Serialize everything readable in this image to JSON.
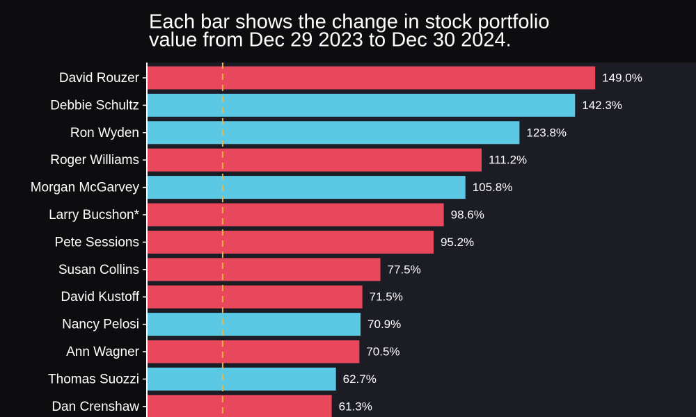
{
  "chart_data": {
    "type": "hbar",
    "subtitle": [
      "Each bar shows the change in stock portfolio",
      "value from Dec 29 2023 to Dec 30 2024."
    ],
    "categories": [
      "David Rouzer",
      "Debbie Schultz",
      "Ron Wyden",
      "Roger Williams",
      "Morgan McGarvey",
      "Larry Bucshon*",
      "Pete Sessions",
      "Susan Collins",
      "David Kustoff",
      "Nancy Pelosi",
      "Ann Wagner",
      "Thomas Suozzi",
      "Dan Crenshaw"
    ],
    "values": [
      149.0,
      142.3,
      123.8,
      111.2,
      105.8,
      98.6,
      95.2,
      77.5,
      71.5,
      70.9,
      70.5,
      62.7,
      61.3
    ],
    "value_labels": [
      "149.0%",
      "142.3%",
      "123.8%",
      "111.2%",
      "105.8%",
      "98.6%",
      "95.2%",
      "77.5%",
      "71.5%",
      "70.9%",
      "70.5%",
      "62.7%",
      "61.3%"
    ],
    "colors": [
      "#e8475c",
      "#5bc8e4",
      "#5bc8e4",
      "#e8475c",
      "#5bc8e4",
      "#e8475c",
      "#e8475c",
      "#e8475c",
      "#e8475c",
      "#5bc8e4",
      "#e8475c",
      "#5bc8e4",
      "#e8475c"
    ],
    "xlim": [
      0,
      180
    ],
    "reference_line": 25,
    "reference_color": "#f2b53a"
  }
}
